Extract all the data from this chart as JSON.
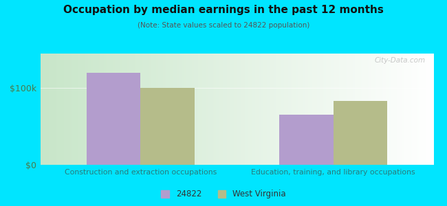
{
  "title": "Occupation by median earnings in the past 12 months",
  "subtitle": "(Note: State values scaled to 24822 population)",
  "categories": [
    "Construction and extraction occupations",
    "Education, training, and library occupations"
  ],
  "values_24822": [
    120000,
    65000
  ],
  "values_wv": [
    100000,
    83000
  ],
  "color_24822": "#b39dcd",
  "color_wv": "#b5bc8a",
  "legend_labels": [
    "24822",
    "West Virginia"
  ],
  "yticks": [
    0,
    100000
  ],
  "ytick_labels": [
    "$0",
    "$100k"
  ],
  "ylim": [
    0,
    145000
  ],
  "bg_outer": "#00e5ff",
  "watermark": "City-Data.com",
  "bar_width": 0.28,
  "title_fontsize": 11,
  "subtitle_fontsize": 7.5,
  "axis_label_color": "#2a7a7a",
  "ytick_color": "#4a7a4a"
}
